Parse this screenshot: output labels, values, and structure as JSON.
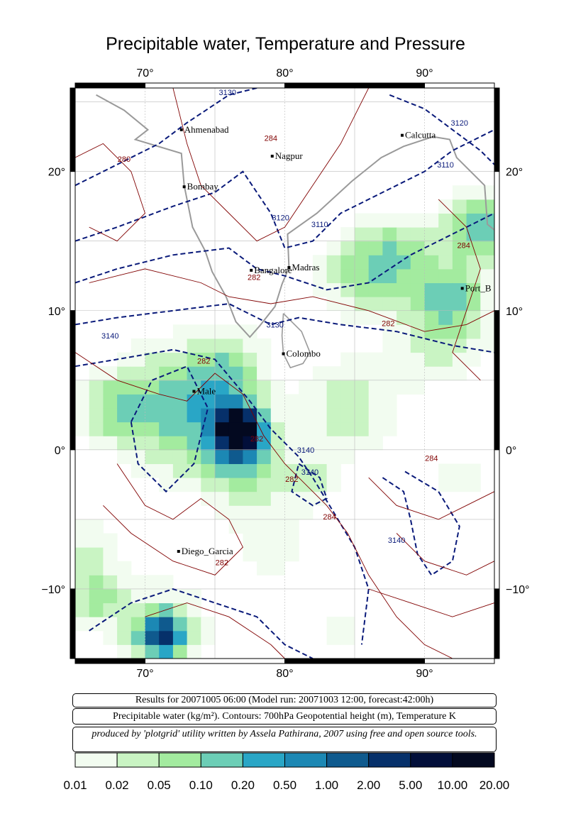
{
  "title": "Precipitable water, Temperature and Pressure",
  "map": {
    "lon_range": [
      65,
      95
    ],
    "lat_range": [
      -15,
      26
    ],
    "lon_ticks": [
      70,
      80,
      90
    ],
    "lon_tick_labels": [
      "70°",
      "80°",
      "90°"
    ],
    "lat_ticks": [
      20,
      10,
      0,
      -10
    ],
    "lat_tick_labels_left": [
      "20°",
      "10°",
      "0°",
      "−10°"
    ],
    "lat_tick_labels_right": [
      "20°",
      "10°",
      "0°",
      "−10°"
    ],
    "cities": [
      {
        "name": "Ahmenabad",
        "lon": 72.6,
        "lat": 23.0
      },
      {
        "name": "Nagpur",
        "lon": 79.1,
        "lat": 21.1
      },
      {
        "name": "Calcutta",
        "lon": 88.4,
        "lat": 22.6
      },
      {
        "name": "Bombay",
        "lon": 72.8,
        "lat": 18.9
      },
      {
        "name": "Madras",
        "lon": 80.3,
        "lat": 13.1
      },
      {
        "name": "Bangalore",
        "lon": 77.6,
        "lat": 12.9
      },
      {
        "name": "Port_B",
        "lon": 92.7,
        "lat": 11.6
      },
      {
        "name": "Colombo",
        "lon": 79.9,
        "lat": 6.9
      },
      {
        "name": "Male",
        "lon": 73.5,
        "lat": 4.2
      },
      {
        "name": "Diego_Garcia",
        "lon": 72.4,
        "lat": -7.3
      }
    ],
    "contour_labels_height": [
      {
        "text": "3130",
        "lon": 75.9,
        "lat": 25.5
      },
      {
        "text": "3120",
        "lon": 92.5,
        "lat": 23.3
      },
      {
        "text": "3110",
        "lon": 91.5,
        "lat": 20.3
      },
      {
        "text": "3120",
        "lon": 79.7,
        "lat": 16.5
      },
      {
        "text": "3110",
        "lon": 82.5,
        "lat": 16.0
      },
      {
        "text": "3140",
        "lon": 67.5,
        "lat": 8.0
      },
      {
        "text": "3130",
        "lon": 79.3,
        "lat": 8.8
      },
      {
        "text": "3140",
        "lon": 81.5,
        "lat": -0.2
      },
      {
        "text": "3140",
        "lon": 81.8,
        "lat": -1.8
      },
      {
        "text": "3140",
        "lon": 88.0,
        "lat": -6.7
      }
    ],
    "contour_labels_temp": [
      {
        "text": "280",
        "lon": 68.5,
        "lat": 20.7
      },
      {
        "text": "284",
        "lon": 79.0,
        "lat": 22.2
      },
      {
        "text": "284",
        "lon": 92.8,
        "lat": 14.5
      },
      {
        "text": "282",
        "lon": 77.8,
        "lat": 12.2
      },
      {
        "text": "282",
        "lon": 87.4,
        "lat": 8.9
      },
      {
        "text": "282",
        "lon": 74.2,
        "lat": 6.2
      },
      {
        "text": "282",
        "lon": 78.0,
        "lat": 0.6
      },
      {
        "text": "282",
        "lon": 80.5,
        "lat": -2.3
      },
      {
        "text": "284",
        "lon": 83.2,
        "lat": -5.0
      },
      {
        "text": "284",
        "lon": 90.5,
        "lat": -0.8
      },
      {
        "text": "282",
        "lon": 75.5,
        "lat": -8.3
      }
    ]
  },
  "info": {
    "results": "Results for 20071005 06:00 (Model run: 20071003 12:00, forecast:42:00h)",
    "variables": "Precipitable water (kg/m²).  Contours: 700hPa Geopotential height (m), Temperature K",
    "credit": "produced by 'plotgrid' utility written by Assela Pathirana, 2007 using free and open source tools."
  },
  "legend": {
    "labels": [
      "0.01",
      "0.02",
      "0.05",
      "0.10",
      "0.20",
      "0.50",
      "1.00",
      "2.00",
      "5.00",
      "10.00",
      "20.00"
    ],
    "colors": [
      "#f2fcf0",
      "#c9f4c3",
      "#a3eb9f",
      "#6cceb6",
      "#29a6c6",
      "#1c88b4",
      "#0f5a8e",
      "#06306a",
      "#020f3a",
      "#030920",
      "#000000"
    ]
  },
  "colors": {
    "height_contour": "#0a1a7a",
    "temp_contour": "#800000",
    "coast": "#9a9a9a",
    "grid": "#bbbbbb"
  }
}
